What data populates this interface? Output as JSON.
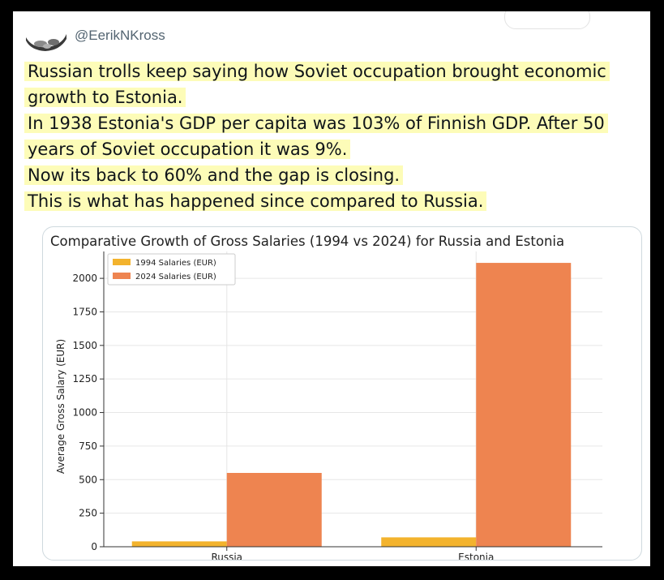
{
  "tweet": {
    "handle": "@EerikNKross",
    "lines": [
      "Russian trolls keep saying how Soviet occupation brought economic",
      "growth to Estonia.",
      "In 1938 Estonia's GDP per capita was 103% of Finnish GDP. After 50",
      "years of Soviet occupation it was 9%.",
      "Now its back to 60% and the gap is closing.",
      "This is what has happened since compared to Russia."
    ]
  },
  "icons": {
    "avatar": "avatar-image"
  },
  "colors": {
    "highlight": "#fdfcb8",
    "series_1994": "#f3b32d",
    "series_2024": "#ee8450"
  },
  "chart_data": {
    "type": "bar",
    "title": "Comparative Growth of Gross Salaries (1994 vs 2024) for Russia and Estonia",
    "xlabel": "",
    "ylabel": "Average Gross Salary (EUR)",
    "categories": [
      "Russia",
      "Estonia"
    ],
    "series": [
      {
        "name": "1994 Salaries (EUR)",
        "values": [
          40,
          70
        ],
        "color": "#f3b32d"
      },
      {
        "name": "2024 Salaries (EUR)",
        "values": [
          550,
          2115
        ],
        "color": "#ee8450"
      }
    ],
    "ylim": [
      0,
      2200
    ],
    "yticks": [
      0,
      250,
      500,
      750,
      1000,
      1250,
      1500,
      1750,
      2000
    ],
    "grid": true,
    "legend": "top-left"
  }
}
